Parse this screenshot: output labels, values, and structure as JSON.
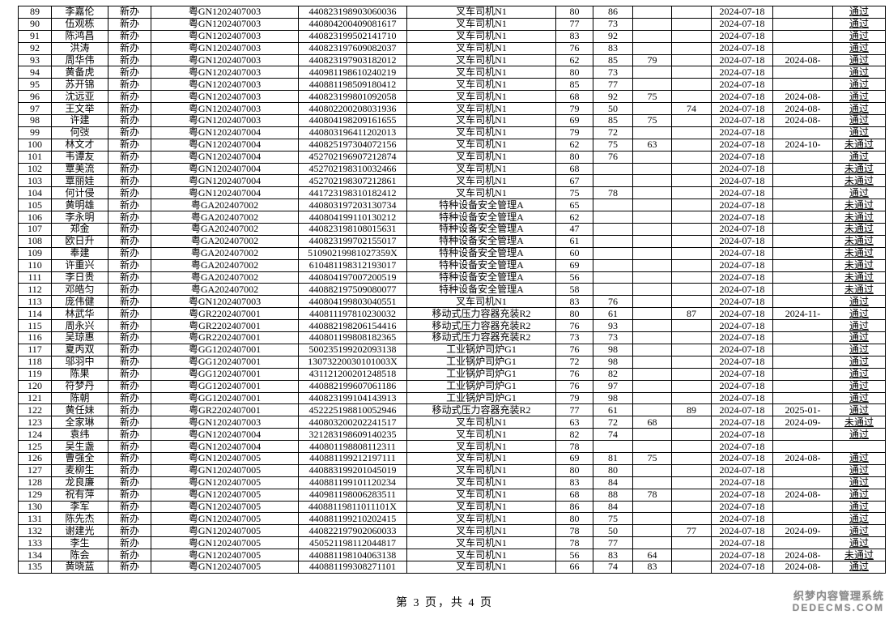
{
  "table": {
    "rows": [
      [
        "89",
        "李嘉伦",
        "新办",
        "粤GN1202407003",
        "440823198903060036",
        "叉车司机N1",
        "80",
        "86",
        "",
        "",
        "2024-07-18",
        "",
        "通过"
      ],
      [
        "90",
        "伍观栋",
        "新办",
        "粤GN1202407003",
        "440804200409081617",
        "叉车司机N1",
        "77",
        "73",
        "",
        "",
        "2024-07-18",
        "",
        "通过"
      ],
      [
        "91",
        "陈鸿昌",
        "新办",
        "粤GN1202407003",
        "440823199502141710",
        "叉车司机N1",
        "83",
        "92",
        "",
        "",
        "2024-07-18",
        "",
        "通过"
      ],
      [
        "92",
        "洪涛",
        "新办",
        "粤GN1202407003",
        "440823197609082037",
        "叉车司机N1",
        "76",
        "83",
        "",
        "",
        "2024-07-18",
        "",
        "通过"
      ],
      [
        "93",
        "周华伟",
        "新办",
        "粤GN1202407003",
        "440823197903182012",
        "叉车司机N1",
        "62",
        "85",
        "79",
        "",
        "2024-07-18",
        "2024-08-",
        "通过"
      ],
      [
        "94",
        "黄备虎",
        "新办",
        "粤GN1202407003",
        "440981198610240219",
        "叉车司机N1",
        "80",
        "73",
        "",
        "",
        "2024-07-18",
        "",
        "通过"
      ],
      [
        "95",
        "苏开锦",
        "新办",
        "粤GN1202407003",
        "440881198509180412",
        "叉车司机N1",
        "85",
        "77",
        "",
        "",
        "2024-07-18",
        "",
        "通过"
      ],
      [
        "96",
        "沈远亚",
        "新办",
        "粤GN1202407003",
        "440823199801092058",
        "叉车司机N1",
        "68",
        "92",
        "75",
        "",
        "2024-07-18",
        "2024-08-",
        "通过"
      ],
      [
        "97",
        "王文举",
        "新办",
        "粤GN1202407003",
        "440802200208031936",
        "叉车司机N1",
        "79",
        "50",
        "",
        "74",
        "2024-07-18",
        "2024-08-",
        "通过"
      ],
      [
        "98",
        "许建",
        "新办",
        "粤GN1202407003",
        "440804198209161655",
        "叉车司机N1",
        "69",
        "85",
        "75",
        "",
        "2024-07-18",
        "2024-08-",
        "通过"
      ],
      [
        "99",
        "何弢",
        "新办",
        "粤GN1202407004",
        "440803196411202013",
        "叉车司机N1",
        "79",
        "72",
        "",
        "",
        "2024-07-18",
        "",
        "通过"
      ],
      [
        "100",
        "林文才",
        "新办",
        "粤GN1202407004",
        "440825197304072156",
        "叉车司机N1",
        "62",
        "75",
        "63",
        "",
        "2024-07-18",
        "2024-10-",
        "未通过"
      ],
      [
        "101",
        "韦谭友",
        "新办",
        "粤GN1202407004",
        "452702196907212874",
        "叉车司机N1",
        "80",
        "76",
        "",
        "",
        "2024-07-18",
        "",
        "通过"
      ],
      [
        "102",
        "覃美流",
        "新办",
        "粤GN1202407004",
        "452702198310032466",
        "叉车司机N1",
        "68",
        "",
        "",
        "",
        "2024-07-18",
        "",
        "未通过"
      ],
      [
        "103",
        "覃丽娃",
        "新办",
        "粤GN1202407004",
        "452702198307212861",
        "叉车司机N1",
        "67",
        "",
        "",
        "",
        "2024-07-18",
        "",
        "未通过"
      ],
      [
        "104",
        "何计侵",
        "新办",
        "粤GN1202407004",
        "441723198310182412",
        "叉车司机N1",
        "75",
        "78",
        "",
        "",
        "2024-07-18",
        "",
        "通过"
      ],
      [
        "105",
        "黄明雄",
        "新办",
        "粤GA202407002",
        "440803197203130734",
        "特种设备安全管理A",
        "65",
        "",
        "",
        "",
        "2024-07-18",
        "",
        "未通过"
      ],
      [
        "106",
        "李永明",
        "新办",
        "粤GA202407002",
        "440804199110130212",
        "特种设备安全管理A",
        "62",
        "",
        "",
        "",
        "2024-07-18",
        "",
        "未通过"
      ],
      [
        "107",
        "郑金",
        "新办",
        "粤GA202407002",
        "440823198108015631",
        "特种设备安全管理A",
        "47",
        "",
        "",
        "",
        "2024-07-18",
        "",
        "未通过"
      ],
      [
        "108",
        "欧日升",
        "新办",
        "粤GA202407002",
        "440823199702155017",
        "特种设备安全管理A",
        "61",
        "",
        "",
        "",
        "2024-07-18",
        "",
        "未通过"
      ],
      [
        "109",
        "奉建",
        "新办",
        "粤GA202407002",
        "51090219981027359X",
        "特种设备安全管理A",
        "60",
        "",
        "",
        "",
        "2024-07-18",
        "",
        "未通过"
      ],
      [
        "110",
        "许重兴",
        "新办",
        "粤GA202407002",
        "610481198312193017",
        "特种设备安全管理A",
        "69",
        "",
        "",
        "",
        "2024-07-18",
        "",
        "未通过"
      ],
      [
        "111",
        "李日贵",
        "新办",
        "粤GA202407002",
        "440804197007200519",
        "特种设备安全管理A",
        "56",
        "",
        "",
        "",
        "2024-07-18",
        "",
        "未通过"
      ],
      [
        "112",
        "邓皓匀",
        "新办",
        "粤GA202407002",
        "440882197509080077",
        "特种设备安全管理A",
        "58",
        "",
        "",
        "",
        "2024-07-18",
        "",
        "未通过"
      ],
      [
        "113",
        "庞伟健",
        "新办",
        "粤GN1202407003",
        "440804199803040551",
        "叉车司机N1",
        "83",
        "76",
        "",
        "",
        "2024-07-18",
        "",
        "通过"
      ],
      [
        "114",
        "林武华",
        "新办",
        "粤GR2202407001",
        "440811197810230032",
        "移动式压力容器充装R2",
        "80",
        "61",
        "",
        "87",
        "2024-07-18",
        "2024-11-",
        "通过"
      ],
      [
        "115",
        "周永兴",
        "新办",
        "粤GR2202407001",
        "440882198206154416",
        "移动式压力容器充装R2",
        "76",
        "93",
        "",
        "",
        "2024-07-18",
        "",
        "通过"
      ],
      [
        "116",
        "吴琼惠",
        "新办",
        "粤GR2202407001",
        "440801199808182365",
        "移动式压力容器充装R2",
        "73",
        "73",
        "",
        "",
        "2024-07-18",
        "",
        "通过"
      ],
      [
        "117",
        "夏丙双",
        "新办",
        "粤GG1202407001",
        "500235199202093138",
        "工业锅炉司炉G1",
        "76",
        "98",
        "",
        "",
        "2024-07-18",
        "",
        "通过"
      ],
      [
        "118",
        "邬羽中",
        "新办",
        "粤GG1202407001",
        "13073220030101003X",
        "工业锅炉司炉G1",
        "72",
        "98",
        "",
        "",
        "2024-07-18",
        "",
        "通过"
      ],
      [
        "119",
        "陈果",
        "新办",
        "粤GG1202407001",
        "431121200201248518",
        "工业锅炉司炉G1",
        "76",
        "82",
        "",
        "",
        "2024-07-18",
        "",
        "通过"
      ],
      [
        "120",
        "符梦丹",
        "新办",
        "粤GG1202407001",
        "440882199607061186",
        "工业锅炉司炉G1",
        "76",
        "97",
        "",
        "",
        "2024-07-18",
        "",
        "通过"
      ],
      [
        "121",
        "陈朝",
        "新办",
        "粤GG1202407001",
        "440823199104143913",
        "工业锅炉司炉G1",
        "79",
        "98",
        "",
        "",
        "2024-07-18",
        "",
        "通过"
      ],
      [
        "122",
        "黄任妹",
        "新办",
        "粤GR2202407001",
        "452225198810052946",
        "移动式压力容器充装R2",
        "77",
        "61",
        "",
        "89",
        "2024-07-18",
        "2025-01-",
        "通过"
      ],
      [
        "123",
        "全家琳",
        "新办",
        "粤GN1202407003",
        "440803200202241517",
        "叉车司机N1",
        "63",
        "72",
        "68",
        "",
        "2024-07-18",
        "2024-09-",
        "未通过"
      ],
      [
        "124",
        "袁纬",
        "新办",
        "粤GN1202407004",
        "321283198609140235",
        "叉车司机N1",
        "82",
        "74",
        "",
        "",
        "2024-07-18",
        "",
        "通过"
      ],
      [
        "125",
        "吴生盏",
        "新办",
        "粤GN1202407004",
        "440801198808112311",
        "叉车司机N1",
        "78",
        "",
        "",
        "",
        "2024-07-18",
        "",
        ""
      ],
      [
        "126",
        "曹强全",
        "新办",
        "粤GN1202407005",
        "440881199212197111",
        "叉车司机N1",
        "69",
        "81",
        "75",
        "",
        "2024-07-18",
        "2024-08-",
        "通过"
      ],
      [
        "127",
        "麦柳生",
        "新办",
        "粤GN1202407005",
        "440883199201045019",
        "叉车司机N1",
        "80",
        "80",
        "",
        "",
        "2024-07-18",
        "",
        "通过"
      ],
      [
        "128",
        "龙良廉",
        "新办",
        "粤GN1202407005",
        "440881199101120234",
        "叉车司机N1",
        "83",
        "84",
        "",
        "",
        "2024-07-18",
        "",
        "通过"
      ],
      [
        "129",
        "祝有萍",
        "新办",
        "粤GN1202407005",
        "440981198006283511",
        "叉车司机N1",
        "68",
        "88",
        "78",
        "",
        "2024-07-18",
        "2024-08-",
        "通过"
      ],
      [
        "130",
        "李军",
        "新办",
        "粤GN1202407005",
        "44088119811011101X",
        "叉车司机N1",
        "86",
        "84",
        "",
        "",
        "2024-07-18",
        "",
        "通过"
      ],
      [
        "131",
        "陈先杰",
        "新办",
        "粤GN1202407005",
        "440881199210202415",
        "叉车司机N1",
        "80",
        "75",
        "",
        "",
        "2024-07-18",
        "",
        "通过"
      ],
      [
        "132",
        "谢建光",
        "新办",
        "粤GN1202407005",
        "440822197902060033",
        "叉车司机N1",
        "78",
        "50",
        "",
        "77",
        "2024-07-18",
        "2024-09-",
        "通过"
      ],
      [
        "133",
        "李生",
        "新办",
        "粤GN1202407005",
        "450521198112044817",
        "叉车司机N1",
        "78",
        "77",
        "",
        "",
        "2024-07-18",
        "",
        "通过"
      ],
      [
        "134",
        "陈会",
        "新办",
        "粤GN1202407005",
        "440881198104063138",
        "叉车司机N1",
        "56",
        "83",
        "64",
        "",
        "2024-07-18",
        "2024-08-",
        "未通过"
      ],
      [
        "135",
        "黄晓蓝",
        "新办",
        "粤GN1202407005",
        "440881199308271101",
        "叉车司机N1",
        "66",
        "74",
        "83",
        "",
        "2024-07-18",
        "2024-08-",
        "通过"
      ]
    ]
  },
  "footer": {
    "page_text": "第 3 页，共 4 页"
  },
  "watermark": {
    "line1": "织梦内容管理系统",
    "line2": "DEDECMS.COM",
    "color": "#8c8c8c"
  }
}
